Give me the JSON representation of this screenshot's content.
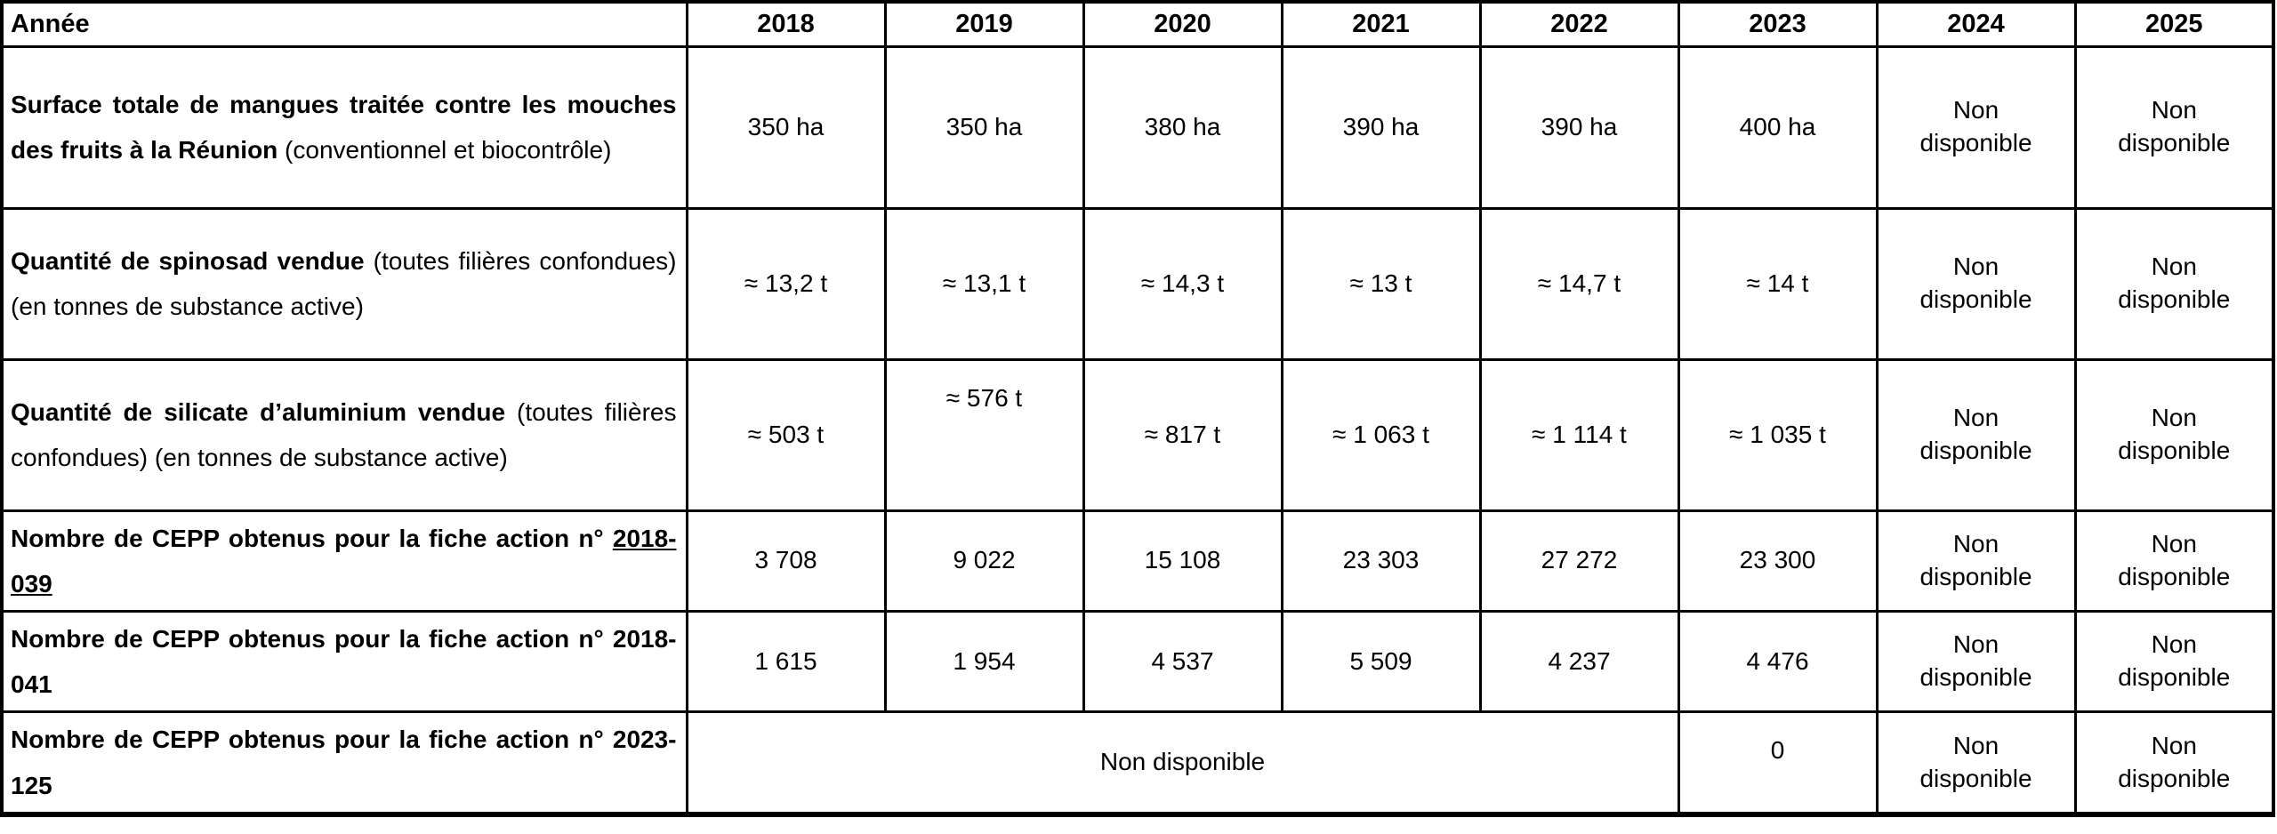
{
  "colors": {
    "border": "#000000",
    "background": "#ffffff",
    "text": "#000000"
  },
  "table": {
    "header": [
      "Année",
      "2018",
      "2019",
      "2020",
      "2021",
      "2022",
      "2023",
      "2024",
      "2025"
    ],
    "rows": [
      {
        "label_parts": [
          {
            "text": "Surface totale de mangues traitée contre les mouches des fruits à la Réunion",
            "bold": true
          },
          {
            "text": " (conventionnel et biocontrôle)",
            "bold": false
          }
        ],
        "cells": [
          {
            "text": "350 ha"
          },
          {
            "text": "350 ha"
          },
          {
            "text": "380 ha"
          },
          {
            "text": "390 ha"
          },
          {
            "text": "390 ha"
          },
          {
            "text": "400 ha"
          },
          {
            "text": "Non disponible"
          },
          {
            "text": "Non disponible"
          }
        ]
      },
      {
        "label_parts": [
          {
            "text": "Quantité de spinosad vendue",
            "bold": true
          },
          {
            "text": " (toutes filières confondues) (en tonnes de substance active)",
            "bold": false
          }
        ],
        "cells": [
          {
            "text": "≈ 13,2 t"
          },
          {
            "text": "≈ 13,1 t"
          },
          {
            "text": "≈ 14,3 t"
          },
          {
            "text": "≈ 13 t"
          },
          {
            "text": "≈ 14,7 t"
          },
          {
            "text": "≈ 14 t"
          },
          {
            "text": "Non disponible"
          },
          {
            "text": "Non disponible"
          }
        ]
      },
      {
        "label_parts": [
          {
            "text": "Quantité de silicate d’aluminium vendue",
            "bold": true
          },
          {
            "text": " (toutes filières confondues) (en tonnes de substance active)",
            "bold": false
          }
        ],
        "cells": [
          {
            "text": "≈ 503 t"
          },
          {
            "text": "≈ 576 t",
            "raised": true
          },
          {
            "text": "≈ 817 t"
          },
          {
            "text": "≈ 1 063 t"
          },
          {
            "text": "≈ 1 114 t"
          },
          {
            "text": "≈ 1 035 t"
          },
          {
            "text": "Non disponible"
          },
          {
            "text": "Non disponible"
          }
        ]
      },
      {
        "label_parts": [
          {
            "text": "Nombre de CEPP obtenus pour la fiche action n° ",
            "bold": true
          },
          {
            "text": "2018-039",
            "bold": true,
            "underline": true
          }
        ],
        "cells": [
          {
            "text": "3 708"
          },
          {
            "text": "9 022"
          },
          {
            "text": "15 108"
          },
          {
            "text": "23 303"
          },
          {
            "text": "27 272"
          },
          {
            "text": "23 300"
          },
          {
            "text": "Non disponible"
          },
          {
            "text": "Non disponible"
          }
        ]
      },
      {
        "label_parts": [
          {
            "text": "Nombre de CEPP obtenus pour la fiche action n° 2018-041",
            "bold": true
          }
        ],
        "cells": [
          {
            "text": "1 615"
          },
          {
            "text": "1 954"
          },
          {
            "text": "4 537"
          },
          {
            "text": "5 509"
          },
          {
            "text": "4 237"
          },
          {
            "text": "4 476"
          },
          {
            "text": "Non disponible"
          },
          {
            "text": "Non disponible"
          }
        ]
      },
      {
        "label_parts": [
          {
            "text": "Nombre de CEPP obtenus pour la fiche action n° 2023-125",
            "bold": true
          }
        ],
        "cells": [
          {
            "text": "Non disponible",
            "colspan": 5
          },
          {
            "text": "0",
            "raised": true
          },
          {
            "text": "Non disponible"
          },
          {
            "text": "Non disponible"
          }
        ]
      }
    ]
  }
}
